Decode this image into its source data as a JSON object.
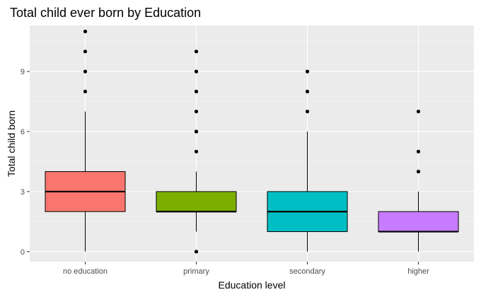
{
  "chart_data": {
    "type": "boxplot",
    "title": "Total child ever born by Education",
    "xlabel": "Education level",
    "ylabel": "Total child born",
    "ylim": [
      -0.5,
      11.3
    ],
    "yticks": [
      0,
      3,
      6,
      9
    ],
    "grid": true,
    "legend": "none",
    "categories": [
      "no education",
      "primary",
      "secondary",
      "higher"
    ],
    "boxes": [
      {
        "category": "no education",
        "color": "#F8766D",
        "whisker_low": 0,
        "q1": 2,
        "median": 3,
        "q3": 4,
        "whisker_high": 7,
        "outliers": [
          8,
          9,
          10,
          11
        ]
      },
      {
        "category": "primary",
        "color": "#7CAE00",
        "whisker_low": 1,
        "q1": 2,
        "median": 2,
        "q3": 3,
        "whisker_high": 4,
        "outliers": [
          0,
          5,
          6,
          7,
          8,
          9,
          10
        ]
      },
      {
        "category": "secondary",
        "color": "#00BFC4",
        "whisker_low": 0,
        "q1": 1,
        "median": 2,
        "q3": 3,
        "whisker_high": 6,
        "outliers": [
          7,
          8,
          9
        ]
      },
      {
        "category": "higher",
        "color": "#C77CFF",
        "whisker_low": 0,
        "q1": 1,
        "median": 1,
        "q3": 2,
        "whisker_high": 3,
        "outliers": [
          4,
          5,
          7
        ]
      }
    ]
  }
}
